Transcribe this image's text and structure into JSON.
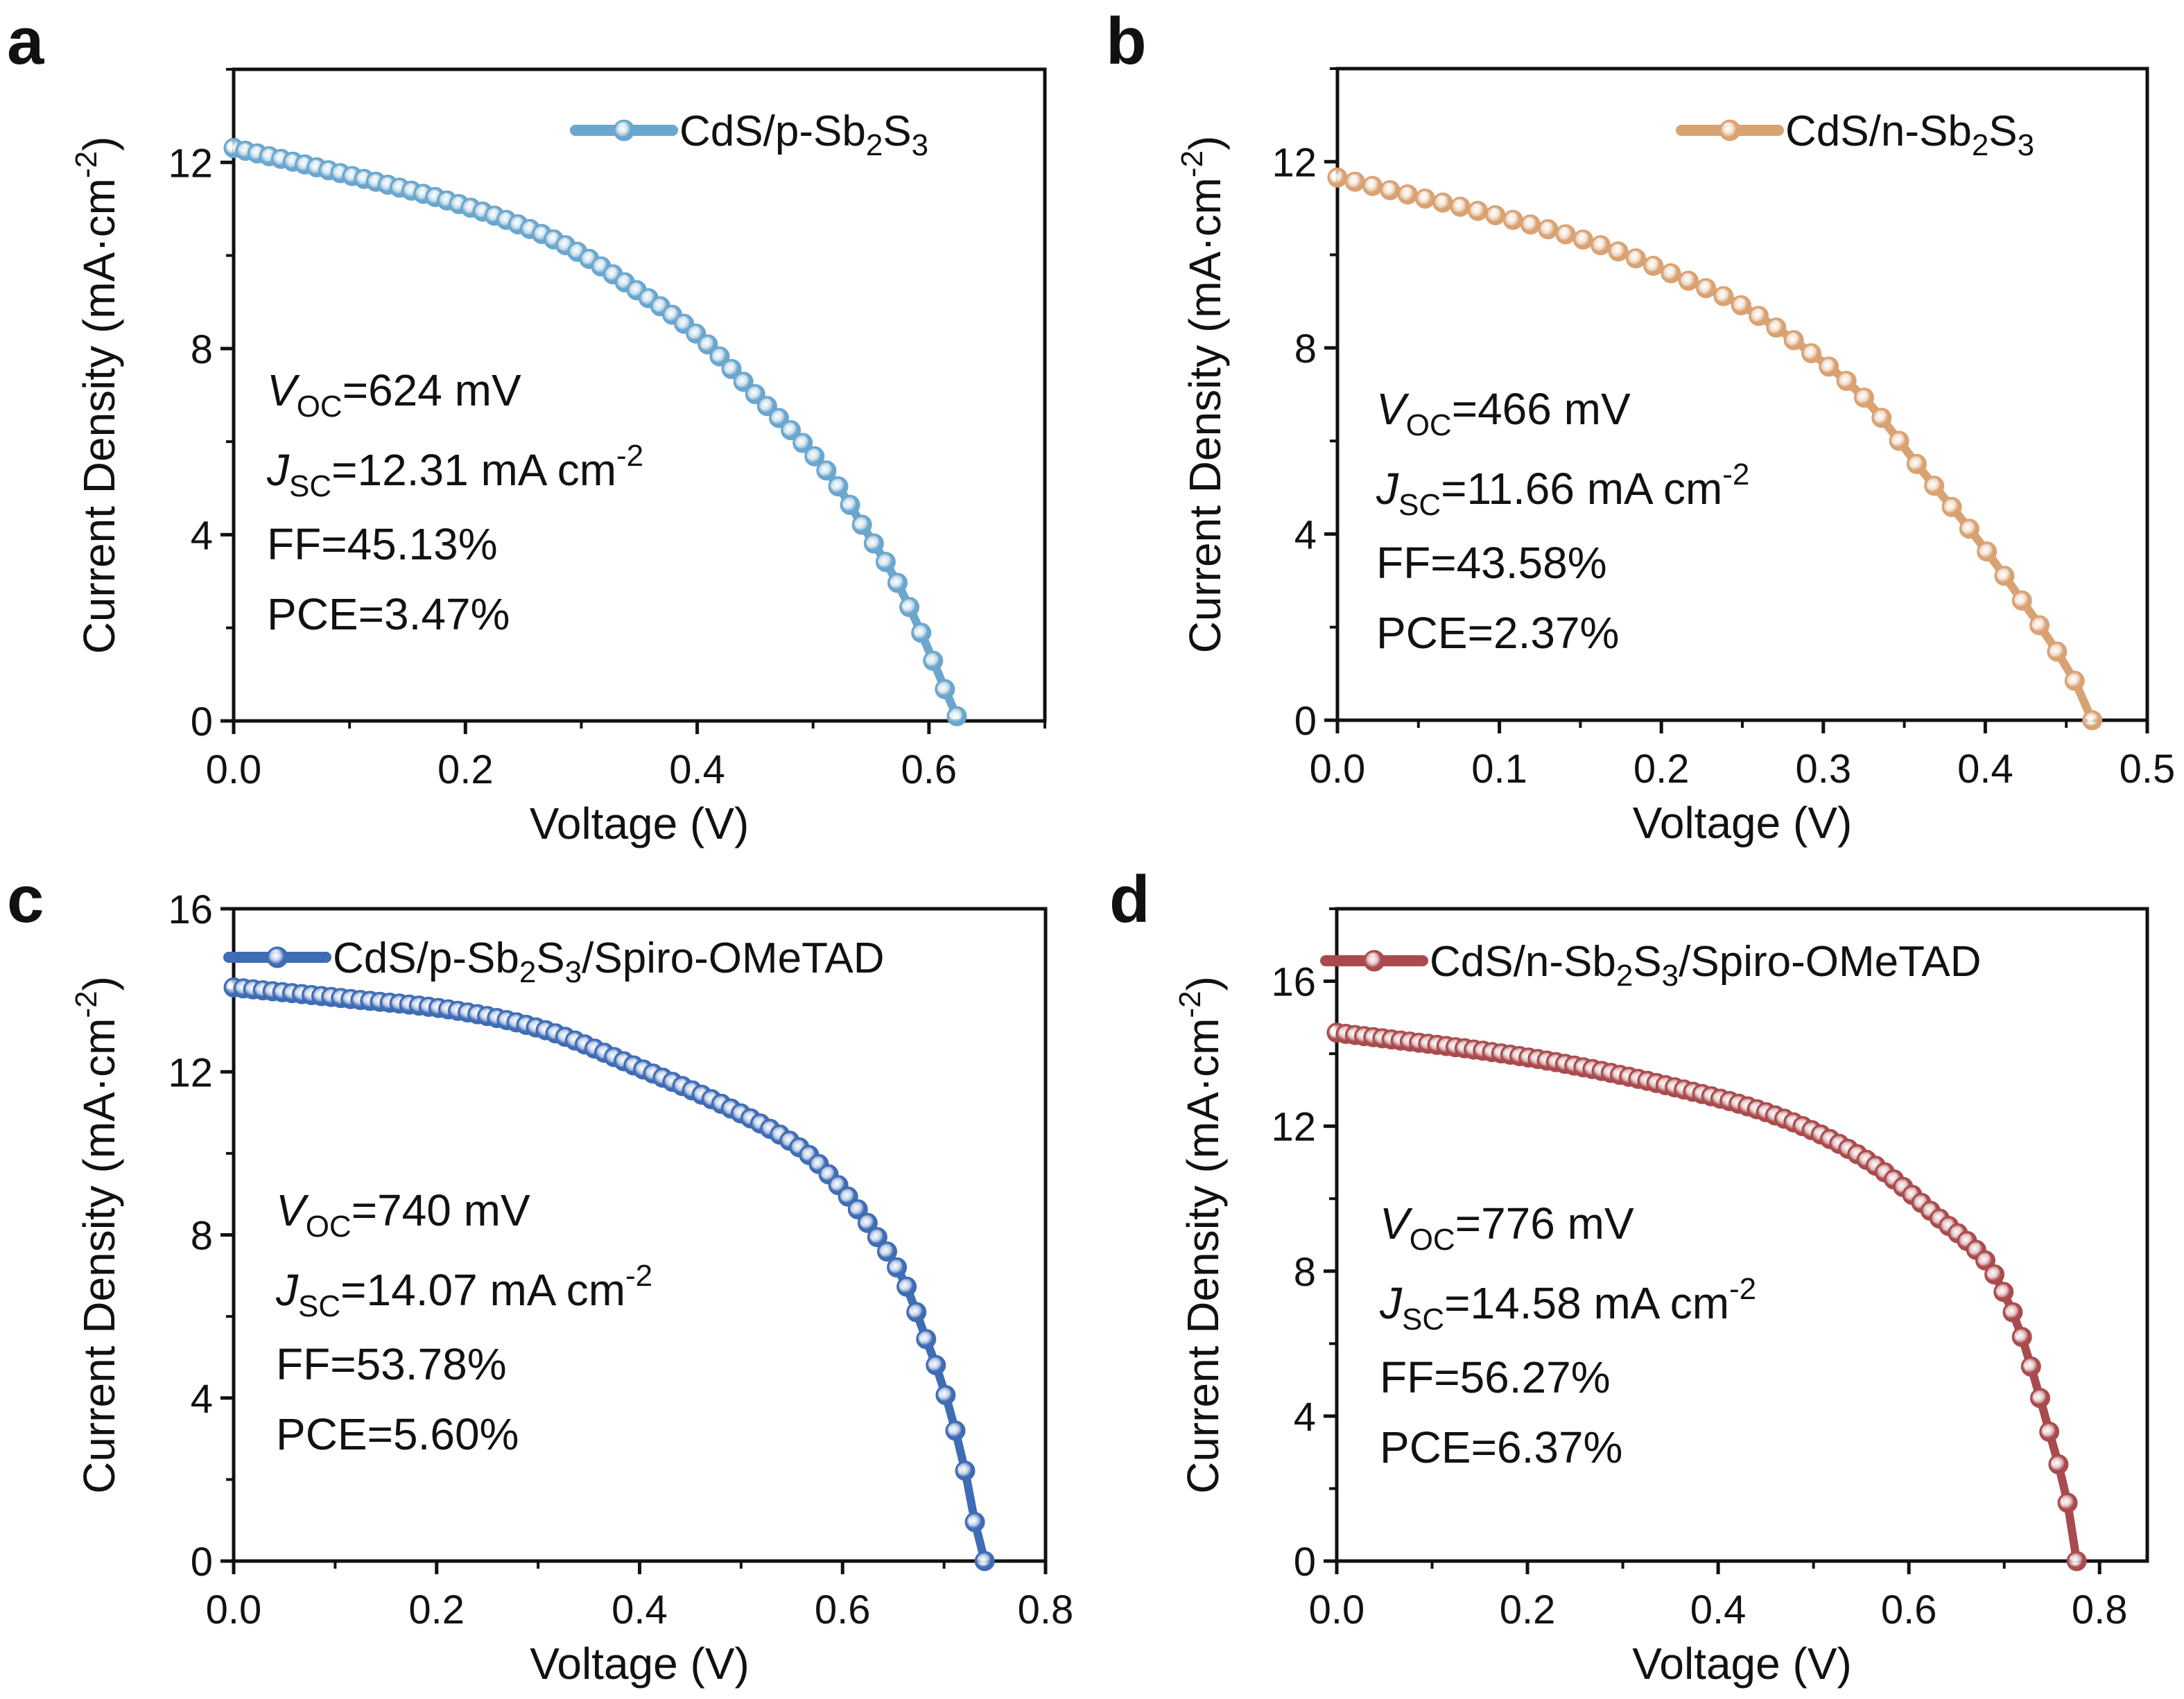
{
  "figure": {
    "panels": [
      "a",
      "b",
      "c",
      "d"
    ]
  },
  "chart_data": [
    {
      "panel": "a",
      "type": "line",
      "title": "",
      "xlabel": "Voltage (V)",
      "ylabel": "Current Density (mA·cm⁻²)",
      "xlim": [
        0,
        0.7
      ],
      "ylim": [
        0,
        14
      ],
      "xticks": [
        "0.0",
        "0.2",
        "0.4",
        "0.6"
      ],
      "xtick_values": [
        0,
        0.2,
        0.4,
        0.6
      ],
      "xminor": [
        0.1,
        0.3,
        0.5,
        0.7
      ],
      "yticks": [
        "0",
        "4",
        "8",
        "12"
      ],
      "ytick_values": [
        0,
        4,
        8,
        12
      ],
      "yminor": [
        2,
        6,
        10,
        14
      ],
      "grid": false,
      "legend_position": "top-right",
      "color": "#6aa6cd",
      "series": [
        {
          "name": "CdS/p-Sb2S3",
          "legend_main": "CdS/p-Sb",
          "legend_sub1": "2",
          "legend_mid": "S",
          "legend_sub2": "3",
          "legend_tail": "",
          "x": [
            0,
            0.087,
            0.195,
            0.28,
            0.345,
            0.4,
            0.447,
            0.49,
            0.52,
            0.545,
            0.57,
            0.595,
            0.61,
            0.624
          ],
          "y": [
            12.31,
            11.8,
            11.1,
            10.3,
            9.3,
            8.3,
            7.1,
            6.0,
            5.1,
            4.1,
            3.1,
            1.8,
            0.9,
            0.1
          ],
          "markers": 62
        }
      ],
      "annotations": {
        "voc_label": "V",
        "voc_sub": "OC",
        "voc_value": "=624 mV",
        "jsc_label": "J",
        "jsc_sub": "SC",
        "jsc_value": "=12.31 mA cm",
        "jsc_sup": "-2",
        "ff": "FF=45.13%",
        "pce": "PCE=3.47%"
      }
    },
    {
      "panel": "b",
      "type": "line",
      "title": "",
      "xlabel": "Voltage (V)",
      "ylabel": "Current Density (mA·cm⁻²)",
      "xlim": [
        0,
        0.5
      ],
      "ylim": [
        0,
        14
      ],
      "xticks": [
        "0.0",
        "0.1",
        "0.2",
        "0.3",
        "0.4",
        "0.5"
      ],
      "xtick_values": [
        0,
        0.1,
        0.2,
        0.3,
        0.4,
        0.5
      ],
      "xminor": [
        0.05,
        0.15,
        0.25,
        0.35,
        0.45
      ],
      "yticks": [
        "0",
        "4",
        "8",
        "12"
      ],
      "ytick_values": [
        0,
        4,
        8,
        12
      ],
      "yminor": [
        2,
        6,
        10,
        14
      ],
      "grid": false,
      "legend_position": "top-right",
      "color": "#d9a273",
      "series": [
        {
          "name": "CdS/n-Sb2S3",
          "legend_main": "CdS/n-Sb",
          "legend_sub1": "2",
          "legend_mid": "S",
          "legend_sub2": "3",
          "legend_tail": "",
          "x": [
            0,
            0.043,
            0.103,
            0.163,
            0.206,
            0.25,
            0.292,
            0.326,
            0.36,
            0.395,
            0.42,
            0.442,
            0.459,
            0.466
          ],
          "y": [
            11.66,
            11.3,
            10.8,
            10.2,
            9.6,
            8.9,
            7.9,
            6.9,
            5.4,
            3.9,
            2.7,
            1.6,
            0.6,
            0.0
          ],
          "markers": 44
        }
      ],
      "annotations": {
        "voc_label": "V",
        "voc_sub": "OC",
        "voc_value": "=466 mV",
        "jsc_label": "J",
        "jsc_sub": "SC",
        "jsc_value": "=11.66 mA cm",
        "jsc_sup": "-2",
        "ff": "FF=43.58%",
        "pce": "PCE=2.37%"
      }
    },
    {
      "panel": "c",
      "type": "line",
      "title": "",
      "xlabel": "Voltage (V)",
      "ylabel": "Current Density (mA·cm⁻²)",
      "xlim": [
        0,
        0.8
      ],
      "ylim": [
        0,
        16
      ],
      "xticks": [
        "0.0",
        "0.2",
        "0.4",
        "0.6",
        "0.8"
      ],
      "xtick_values": [
        0,
        0.2,
        0.4,
        0.6,
        0.8
      ],
      "xminor": [
        0.1,
        0.3,
        0.5,
        0.7
      ],
      "yticks": [
        "0",
        "4",
        "8",
        "12",
        "16"
      ],
      "ytick_values": [
        0,
        4,
        8,
        12,
        16
      ],
      "yminor": [
        2,
        6,
        10,
        14
      ],
      "grid": false,
      "legend_position": "top",
      "color": "#3e6cb5",
      "series": [
        {
          "name": "CdS/p-Sb2S3/Spiro-OMeTAD",
          "legend_main": "CdS/p-Sb",
          "legend_sub1": "2",
          "legend_mid": "S",
          "legend_sub2": "3",
          "legend_tail": "/Spiro-OMeTAD",
          "x": [
            0,
            0.11,
            0.22,
            0.31,
            0.39,
            0.49,
            0.56,
            0.6,
            0.63,
            0.66,
            0.68,
            0.7,
            0.72,
            0.73,
            0.74
          ],
          "y": [
            14.07,
            13.8,
            13.5,
            13.0,
            12.2,
            11.1,
            10.1,
            9.1,
            8.1,
            6.9,
            5.6,
            4.2,
            2.3,
            1.0,
            0.0
          ],
          "markers": 78
        }
      ],
      "annotations": {
        "voc_label": "V",
        "voc_sub": "OC",
        "voc_value": "=740 mV",
        "jsc_label": "J",
        "jsc_sub": "SC",
        "jsc_value": "=14.07 mA cm",
        "jsc_sup": "-2",
        "ff": "FF=53.78%",
        "pce": "PCE=5.60%"
      }
    },
    {
      "panel": "d",
      "type": "line",
      "title": "",
      "xlabel": "Voltage (V)",
      "ylabel": "Current Density (mA·cm⁻²)",
      "xlim": [
        0,
        0.85
      ],
      "ylim": [
        0,
        18
      ],
      "xticks": [
        "0.0",
        "0.2",
        "0.4",
        "0.6",
        "0.8"
      ],
      "xtick_values": [
        0,
        0.2,
        0.4,
        0.6,
        0.8
      ],
      "xminor": [
        0.1,
        0.3,
        0.5,
        0.7
      ],
      "yticks": [
        "0",
        "4",
        "8",
        "12",
        "16"
      ],
      "ytick_values": [
        0,
        4,
        8,
        12,
        16
      ],
      "yminor": [
        2,
        6,
        10,
        14,
        18
      ],
      "grid": false,
      "legend_position": "top",
      "color": "#a94b4e",
      "series": [
        {
          "name": "CdS/n-Sb2S3/Spiro-OMeTAD",
          "legend_main": "CdS/n-Sb",
          "legend_sub1": "2",
          "legend_mid": "S",
          "legend_sub2": "3",
          "legend_tail": "/Spiro-OMeTAD",
          "x": [
            0,
            0.2,
            0.35,
            0.47,
            0.56,
            0.63,
            0.68,
            0.71,
            0.73,
            0.75,
            0.765,
            0.776
          ],
          "y": [
            14.58,
            13.9,
            13.1,
            12.2,
            11.0,
            9.5,
            8.3,
            6.8,
            5.2,
            3.3,
            1.8,
            0.0
          ],
          "markers": 82
        }
      ],
      "annotations": {
        "voc_label": "V",
        "voc_sub": "OC",
        "voc_value": "=776 mV",
        "jsc_label": "J",
        "jsc_sub": "SC",
        "jsc_value": "=14.58 mA cm",
        "jsc_sup": "-2",
        "ff": "FF=56.27%",
        "pce": "PCE=6.37%"
      }
    }
  ]
}
